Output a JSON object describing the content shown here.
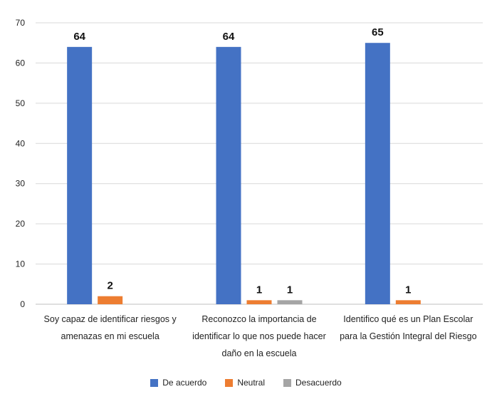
{
  "chart_data": {
    "type": "bar",
    "categories": [
      [
        "Soy capaz de identificar riesgos y",
        "amenazas en mi escuela"
      ],
      [
        "Reconozco la importancia de",
        "identificar lo que nos puede hacer",
        "daño en la escuela"
      ],
      [
        "Identifico qué es un Plan Escolar",
        "para la Gestión Integral del Riesgo"
      ]
    ],
    "series": [
      {
        "name": "De acuerdo",
        "color": "#4472C4",
        "values": [
          64,
          64,
          65
        ]
      },
      {
        "name": "Neutral",
        "color": "#ED7D31",
        "values": [
          2,
          1,
          1
        ]
      },
      {
        "name": "Desacuerdo",
        "color": "#A5A5A5",
        "values": [
          0,
          1,
          0
        ]
      }
    ],
    "ylim": [
      0,
      70
    ],
    "yticks": [
      0,
      10,
      20,
      30,
      40,
      50,
      60,
      70
    ],
    "grid": true,
    "legend_position": "bottom"
  }
}
